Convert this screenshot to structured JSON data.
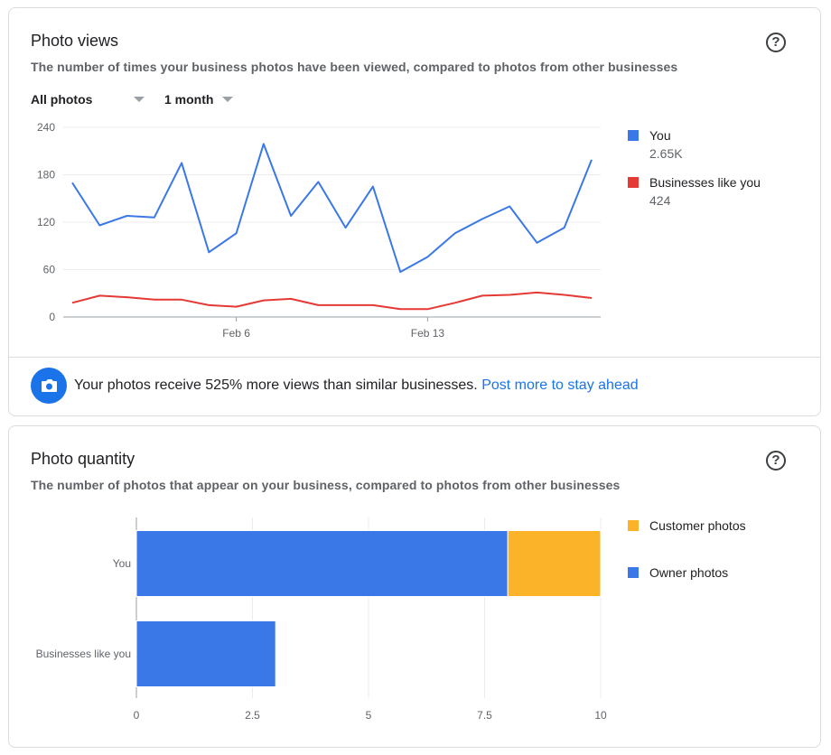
{
  "photo_views": {
    "title": "Photo views",
    "subtitle": "The number of times your business photos have been viewed, compared to photos from other businesses",
    "help_icon": "?",
    "filter_photos": "All photos",
    "filter_range": "1 month",
    "legend": [
      {
        "label": "You",
        "value": "2.65K",
        "color": "#3b78e7"
      },
      {
        "label": "Businesses like you",
        "value": "424",
        "color": "#e53935"
      }
    ],
    "banner_text": "Your photos receive 525% more views than similar businesses.",
    "banner_link": "Post more to stay ahead"
  },
  "photo_quantity": {
    "title": "Photo quantity",
    "subtitle": "The number of photos that appear on your business, compared to photos from other businesses",
    "help_icon": "?",
    "legend": [
      {
        "label": "Customer photos",
        "color": "#fbb42a"
      },
      {
        "label": "Owner photos",
        "color": "#3b78e7"
      }
    ]
  },
  "chart_data": [
    {
      "type": "line",
      "x_ticks": [
        "Feb 6",
        "Feb 13"
      ],
      "x_tick_index": [
        6,
        13
      ],
      "ylim": [
        0,
        240
      ],
      "y_ticks": [
        0,
        60,
        120,
        180,
        240
      ],
      "grid": true,
      "legend_position": "right",
      "series": [
        {
          "name": "You",
          "color": "#3b78e7",
          "values": [
            170,
            116,
            128,
            126,
            195,
            82,
            106,
            219,
            128,
            171,
            113,
            165,
            57,
            76,
            106,
            124,
            140,
            94,
            113,
            199
          ]
        },
        {
          "name": "Businesses like you",
          "color": "#e53935",
          "values": [
            18,
            27,
            25,
            22,
            22,
            15,
            13,
            21,
            23,
            15,
            15,
            15,
            10,
            10,
            18,
            27,
            28,
            31,
            28,
            24
          ]
        }
      ]
    },
    {
      "type": "bar",
      "orientation": "horizontal",
      "stacked": true,
      "categories": [
        "You",
        "Businesses like you"
      ],
      "xlim": [
        0,
        10
      ],
      "x_ticks": [
        "0",
        "2.5",
        "5",
        "7.5",
        "10"
      ],
      "legend_position": "right",
      "series": [
        {
          "name": "Owner photos",
          "color": "#3b78e7",
          "values": [
            8,
            3
          ]
        },
        {
          "name": "Customer photos",
          "color": "#fbb42a",
          "values": [
            2,
            0
          ]
        }
      ]
    }
  ]
}
